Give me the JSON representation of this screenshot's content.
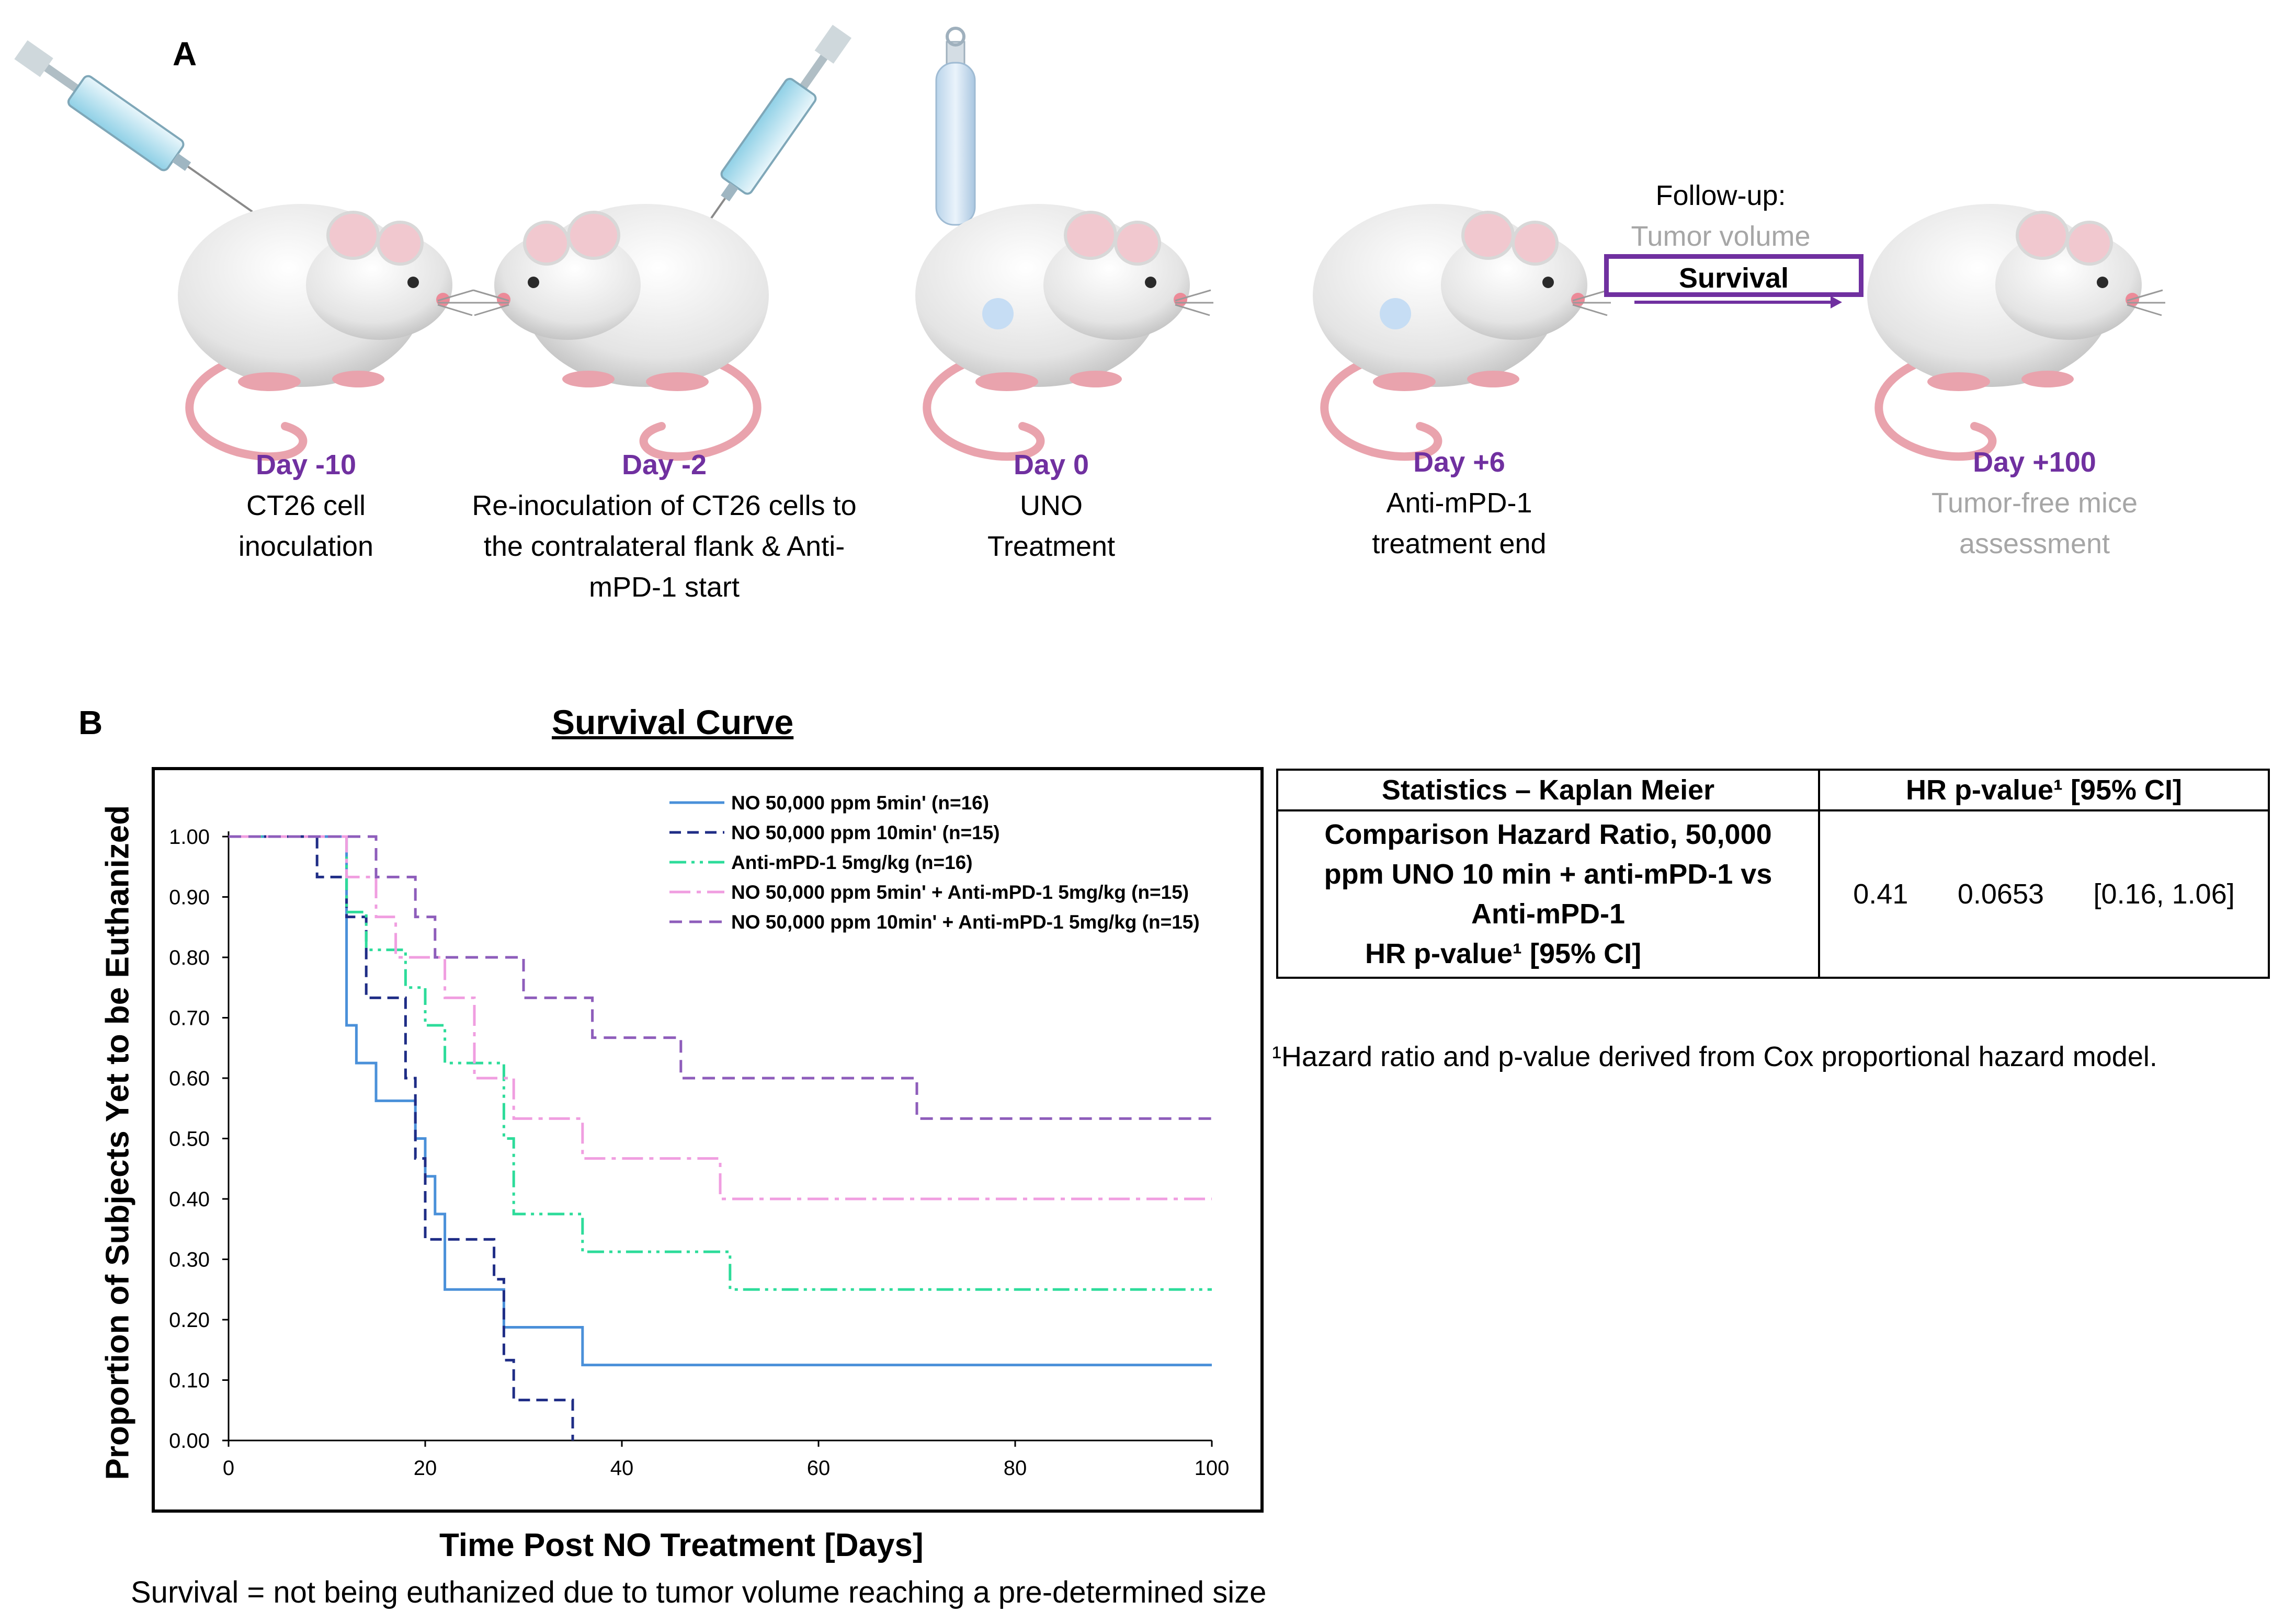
{
  "panel_a": {
    "letter": "A",
    "steps": [
      {
        "day": "Day -10",
        "lines": [
          "CT26 cell",
          "inoculation"
        ]
      },
      {
        "day": "Day -2",
        "lines": [
          "Re-inoculation of CT26 cells to",
          "the contralateral flank & Anti-",
          "mPD-1 start"
        ]
      },
      {
        "day": "Day 0",
        "lines": [
          "UNO",
          "Treatment"
        ]
      },
      {
        "day": "Day +6",
        "lines": [
          "Anti-mPD-1",
          "treatment end"
        ]
      },
      {
        "day": "Day +100",
        "lines": [
          "Tumor-free mice",
          "assessment"
        ]
      }
    ],
    "followup": {
      "label": "Follow-up:",
      "tumor_volume": "Tumor volume",
      "survival": "Survival"
    }
  },
  "panel_b": {
    "letter": "B",
    "table": {
      "header": [
        "Statistics – Kaplan Meier",
        "HR   p-value¹   [95% CI]"
      ],
      "row_label_lines": [
        "Comparison Hazard Ratio, 50,000",
        "ppm  UNO 10 min + anti-mPD-1 vs",
        "Anti-mPD-1"
      ],
      "row_sub": "HR        p-value¹   [95% CI]",
      "hr": "0.41",
      "p_value": "0.0653",
      "ci": "[0.16, 1.06]"
    },
    "footnote": "¹Hazard ratio and p-value derived from Cox proportional hazard model.",
    "note": "Survival = not being euthanized due to tumor volume reaching a pre-determined size"
  },
  "chart_data": {
    "type": "line",
    "step": true,
    "title": "Survival Curve",
    "xlabel": "Time Post NO Treatment [Days]",
    "ylabel": "Proportion of Subjects Yet to be Euthanized",
    "xlim": [
      0,
      100
    ],
    "ylim": [
      0,
      1
    ],
    "xticks": [
      0,
      20,
      40,
      60,
      80,
      100
    ],
    "yticks": [
      0.0,
      0.1,
      0.2,
      0.3,
      0.4,
      0.5,
      0.6,
      0.7,
      0.8,
      0.9,
      1.0
    ],
    "ytick_labels": [
      "0.00",
      "0.10",
      "0.20",
      "0.30",
      "0.40",
      "0.50",
      "0.60",
      "0.70",
      "0.80",
      "0.90",
      "1.00"
    ],
    "grid": false,
    "legend": "top-right",
    "series": [
      {
        "name": "NO 50,000 ppm 5min' (n=16)",
        "color": "#4a90d9",
        "dash": "",
        "x": [
          0,
          9,
          12,
          13,
          15,
          17,
          19,
          20,
          21,
          22,
          27,
          28,
          36,
          100
        ],
        "y": [
          1.0,
          1.0,
          0.6875,
          0.625,
          0.5625,
          0.5625,
          0.5,
          0.4375,
          0.375,
          0.25,
          0.25,
          0.1875,
          0.125,
          0.125
        ]
      },
      {
        "name": "NO 50,000 ppm 10min'  (n=15)",
        "color": "#1f2d86",
        "dash": "22,12",
        "x": [
          0,
          9,
          12,
          14,
          17,
          18,
          19,
          20,
          26,
          27,
          28,
          29,
          35
        ],
        "y": [
          1.0,
          0.933,
          0.867,
          0.733,
          0.733,
          0.6,
          0.467,
          0.333,
          0.333,
          0.267,
          0.133,
          0.067,
          0.0
        ]
      },
      {
        "name": "Anti-mPD-1 5mg/kg (n=16)",
        "color": "#2ddc9a",
        "dash": "32,10,6,10,6,10",
        "x": [
          0,
          9,
          12,
          14,
          16,
          18,
          20,
          22,
          24,
          28,
          29,
          36,
          51,
          100
        ],
        "y": [
          1.0,
          1.0,
          0.875,
          0.8125,
          0.8125,
          0.75,
          0.6875,
          0.625,
          0.625,
          0.5,
          0.375,
          0.3125,
          0.25,
          0.25
        ]
      },
      {
        "name": "NO 50,000 ppm 5min' + Anti-mPD-1 5mg/kg (n=15)",
        "color": "#f09ee0",
        "dash": "40,12,8,12",
        "x": [
          0,
          9,
          12,
          15,
          17,
          19,
          22,
          25,
          27,
          29,
          36,
          50,
          100
        ],
        "y": [
          1.0,
          1.0,
          0.933,
          0.867,
          0.8,
          0.8,
          0.733,
          0.6,
          0.6,
          0.533,
          0.467,
          0.4,
          0.4
        ]
      },
      {
        "name": "NO 50,000 ppm 10min' + Anti-mPD-1 5mg/kg (n=15)",
        "color": "#8e5dbb",
        "dash": "24,14",
        "x": [
          0,
          15,
          19,
          21,
          30,
          37,
          46,
          70,
          100
        ],
        "y": [
          1.0,
          0.933,
          0.867,
          0.8,
          0.733,
          0.667,
          0.6,
          0.533,
          0.533
        ]
      }
    ]
  }
}
